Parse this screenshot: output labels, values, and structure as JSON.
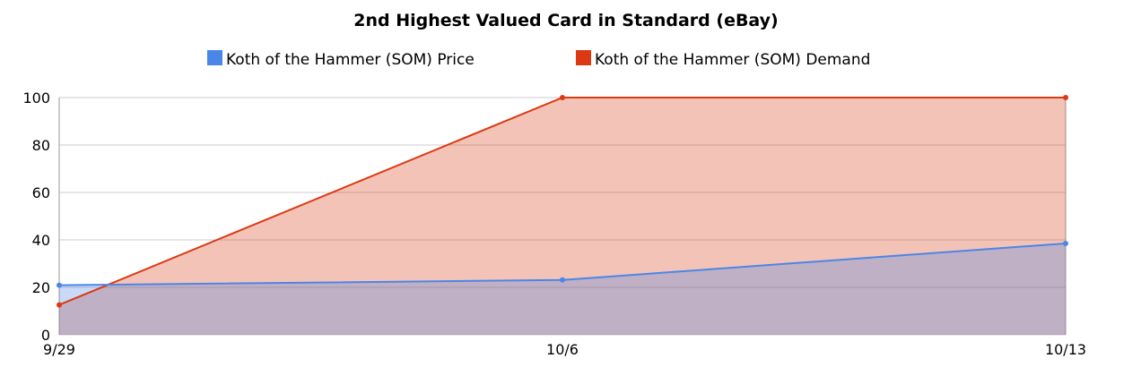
{
  "chart_data": {
    "type": "area",
    "title": "2nd Highest Valued Card in Standard (eBay)",
    "xlabel": "",
    "ylabel": "",
    "categories": [
      "9/29",
      "10/6",
      "10/13"
    ],
    "ylim": [
      0,
      100
    ],
    "yticks": [
      "0",
      "20",
      "40",
      "60",
      "80",
      "100"
    ],
    "grid": true,
    "legend_position": "top",
    "series": [
      {
        "name": "Koth of the Hammer (SOM) Price",
        "color": "#4a86e8",
        "values": [
          20.9,
          23.1,
          38.5
        ]
      },
      {
        "name": "Koth of the Hammer (SOM) Demand",
        "color": "#dc3912",
        "values": [
          12.6,
          100,
          100
        ]
      }
    ]
  }
}
